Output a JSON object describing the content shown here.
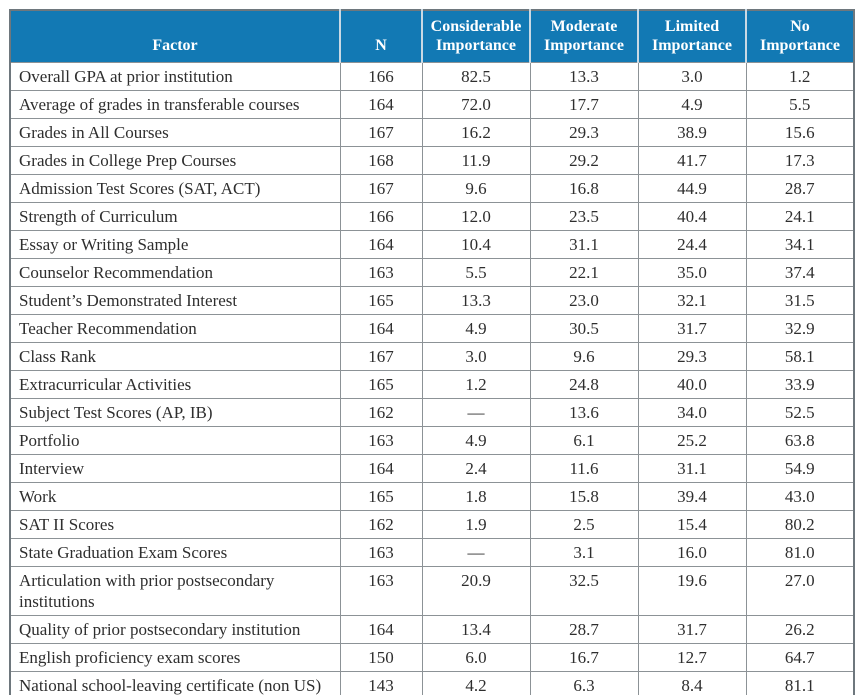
{
  "colors": {
    "header_bg": "#1279b4",
    "header_text": "#ffffff",
    "body_text": "#2e2e2e",
    "grid_border": "#8c9296",
    "outer_border": "#6e777d"
  },
  "table": {
    "columns": [
      "Factor",
      "N",
      "Considerable Importance",
      "Moderate Importance",
      "Limited Importance",
      "No Importance"
    ],
    "rows": [
      {
        "factor": "Overall GPA at prior institution",
        "n": "166",
        "considerable": "82.5",
        "moderate": "13.3",
        "limited": "3.0",
        "no": "1.2"
      },
      {
        "factor": "Average of grades in transferable courses",
        "n": "164",
        "considerable": "72.0",
        "moderate": "17.7",
        "limited": "4.9",
        "no": "5.5"
      },
      {
        "factor": "Grades in All Courses",
        "n": "167",
        "considerable": "16.2",
        "moderate": "29.3",
        "limited": "38.9",
        "no": "15.6"
      },
      {
        "factor": "Grades in College Prep Courses",
        "n": "168",
        "considerable": "11.9",
        "moderate": "29.2",
        "limited": "41.7",
        "no": "17.3"
      },
      {
        "factor": "Admission Test Scores (SAT, ACT)",
        "n": "167",
        "considerable": "9.6",
        "moderate": "16.8",
        "limited": "44.9",
        "no": "28.7"
      },
      {
        "factor": "Strength of Curriculum",
        "n": "166",
        "considerable": "12.0",
        "moderate": "23.5",
        "limited": "40.4",
        "no": "24.1"
      },
      {
        "factor": "Essay or Writing Sample",
        "n": "164",
        "considerable": "10.4",
        "moderate": "31.1",
        "limited": "24.4",
        "no": "34.1"
      },
      {
        "factor": "Counselor Recommendation",
        "n": "163",
        "considerable": "5.5",
        "moderate": "22.1",
        "limited": "35.0",
        "no": "37.4"
      },
      {
        "factor": "Student’s Demonstrated Interest",
        "n": "165",
        "considerable": "13.3",
        "moderate": "23.0",
        "limited": "32.1",
        "no": "31.5"
      },
      {
        "factor": "Teacher Recommendation",
        "n": "164",
        "considerable": "4.9",
        "moderate": "30.5",
        "limited": "31.7",
        "no": "32.9"
      },
      {
        "factor": "Class Rank",
        "n": "167",
        "considerable": "3.0",
        "moderate": "9.6",
        "limited": "29.3",
        "no": "58.1"
      },
      {
        "factor": "Extracurricular Activities",
        "n": "165",
        "considerable": "1.2",
        "moderate": "24.8",
        "limited": "40.0",
        "no": "33.9"
      },
      {
        "factor": "Subject Test Scores (AP, IB)",
        "n": "162",
        "considerable": "—",
        "moderate": "13.6",
        "limited": "34.0",
        "no": "52.5"
      },
      {
        "factor": "Portfolio",
        "n": "163",
        "considerable": "4.9",
        "moderate": "6.1",
        "limited": "25.2",
        "no": "63.8"
      },
      {
        "factor": "Interview",
        "n": "164",
        "considerable": "2.4",
        "moderate": "11.6",
        "limited": "31.1",
        "no": "54.9"
      },
      {
        "factor": "Work",
        "n": "165",
        "considerable": "1.8",
        "moderate": "15.8",
        "limited": "39.4",
        "no": "43.0"
      },
      {
        "factor": "SAT II Scores",
        "n": "162",
        "considerable": "1.9",
        "moderate": "2.5",
        "limited": "15.4",
        "no": "80.2"
      },
      {
        "factor": "State Graduation Exam Scores",
        "n": "163",
        "considerable": "—",
        "moderate": "3.1",
        "limited": "16.0",
        "no": "81.0"
      },
      {
        "factor": "Articulation with prior postsecondary institutions",
        "n": "163",
        "considerable": "20.9",
        "moderate": "32.5",
        "limited": "19.6",
        "no": "27.0"
      },
      {
        "factor": "Quality of prior postsecondary institution",
        "n": "164",
        "considerable": "13.4",
        "moderate": "28.7",
        "limited": "31.7",
        "no": "26.2"
      },
      {
        "factor": "English proficiency exam scores",
        "n": "150",
        "considerable": "6.0",
        "moderate": "16.7",
        "limited": "12.7",
        "no": "64.7"
      },
      {
        "factor": "National school-leaving certificate (non US)",
        "n": "143",
        "considerable": "4.2",
        "moderate": "6.3",
        "limited": "8.4",
        "no": "81.1"
      }
    ]
  }
}
